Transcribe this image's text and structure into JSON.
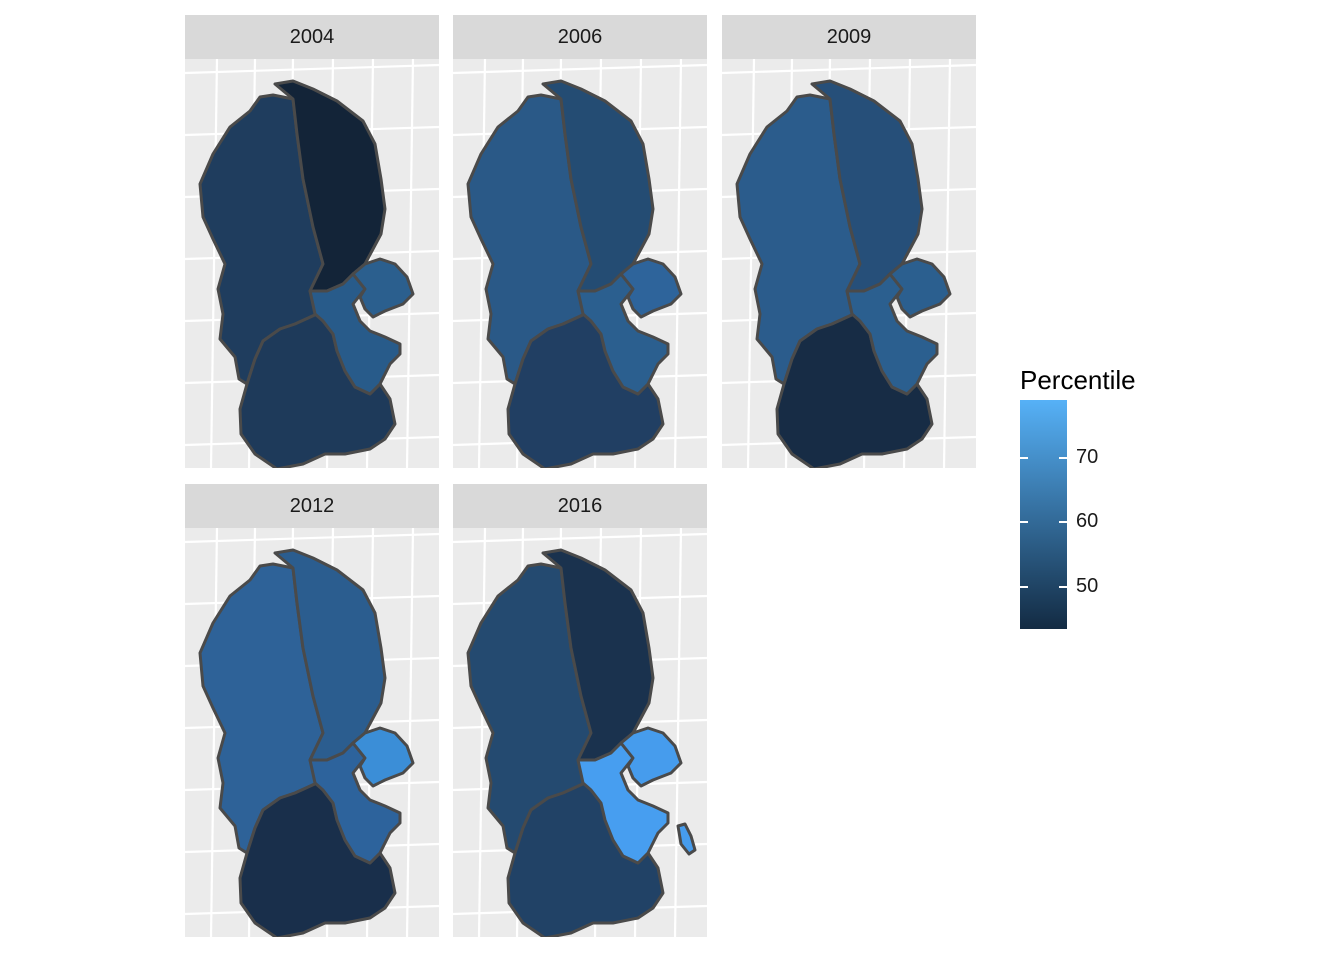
{
  "panels": [
    {
      "year": "2004",
      "fills": {
        "west": "#1f3d5e",
        "east": "#132438",
        "south": "#1e3a5a",
        "southeast": "#285b8a",
        "island": "#2b5f8e"
      }
    },
    {
      "year": "2006",
      "fills": {
        "west": "#2a5987",
        "east": "#244c73",
        "south": "#213f63",
        "southeast": "#2b5f8f",
        "island": "#2e649b"
      }
    },
    {
      "year": "2009",
      "fills": {
        "west": "#2b5c8c",
        "east": "#264f79",
        "south": "#172c45",
        "southeast": "#2b5f8f",
        "island": "#2b5f8f"
      }
    },
    {
      "year": "2012",
      "fills": {
        "west": "#2e6298",
        "east": "#2b5d8f",
        "south": "#192f4b",
        "southeast": "#2d639c",
        "island": "#3b8ed7"
      }
    },
    {
      "year": "2016",
      "fills": {
        "west": "#244a70",
        "east": "#1a324e",
        "south": "#214266",
        "southeast": "#479ef0",
        "island": "#469ced"
      }
    }
  ],
  "legend": {
    "title": "Percentile",
    "ticks": [
      "70",
      "60",
      "50"
    ],
    "tick_values": [
      70,
      60,
      50
    ],
    "range": [
      44,
      79
    ],
    "low_color": "#132b43",
    "high_color": "#56b1f7"
  }
}
